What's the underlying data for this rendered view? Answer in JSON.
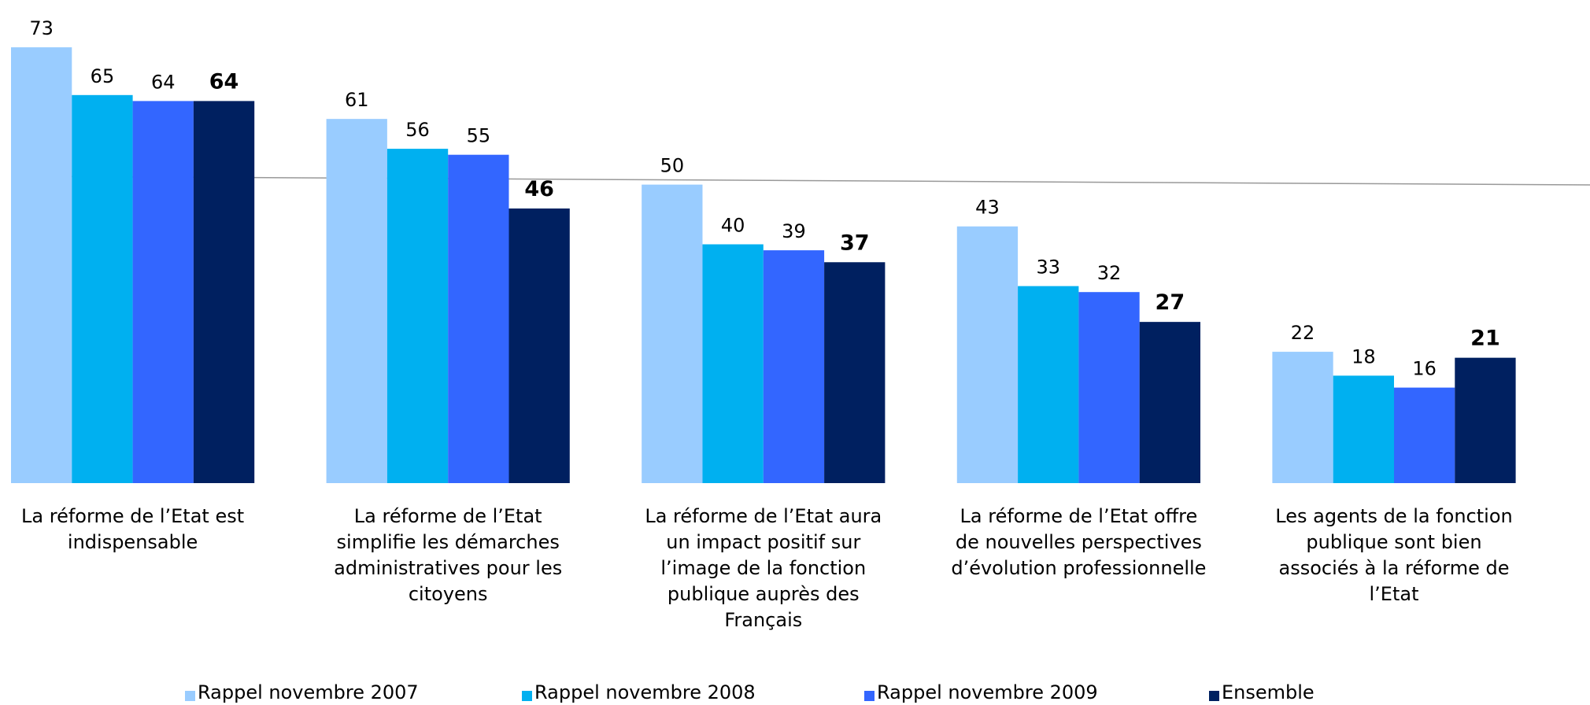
{
  "chart_data": {
    "type": "bar",
    "categories": [
      "La réforme de l’Etat est indispensable",
      "La réforme de l’Etat simplifie les démarches administratives pour les citoyens",
      "La réforme de l’Etat aura un impact positif sur l’image de la fonction publique auprès des Français",
      "La réforme de l’Etat offre de nouvelles perspectives d’évolution professionnelle",
      "Les agents de la fonction publique sont bien associés à la réforme de l’Etat"
    ],
    "series": [
      {
        "name": "Rappel novembre 2007",
        "color": "#99ccff",
        "values": [
          73,
          61,
          50,
          43,
          22
        ]
      },
      {
        "name": "Rappel novembre 2008",
        "color": "#00b0f0",
        "values": [
          65,
          56,
          40,
          33,
          18
        ]
      },
      {
        "name": "Rappel novembre 2009",
        "color": "#3366ff",
        "values": [
          64,
          55,
          39,
          32,
          16
        ]
      },
      {
        "name": "Ensemble",
        "color": "#002060",
        "values": [
          64,
          46,
          37,
          27,
          21
        ],
        "bold": true
      }
    ],
    "ylim": [
      0,
      80
    ],
    "legend": "bottom"
  }
}
